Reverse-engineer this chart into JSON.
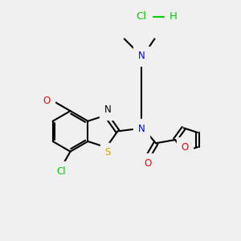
{
  "bg_color": "#f0f0f0",
  "bond_color": "#000000",
  "colors": {
    "N": "#0000ff",
    "O": "#ff0000",
    "S": "#ccaa00",
    "Cl_green": "#00cc00"
  },
  "font_size": 8.5,
  "fig_size": [
    3.0,
    3.0
  ],
  "dpi": 100
}
